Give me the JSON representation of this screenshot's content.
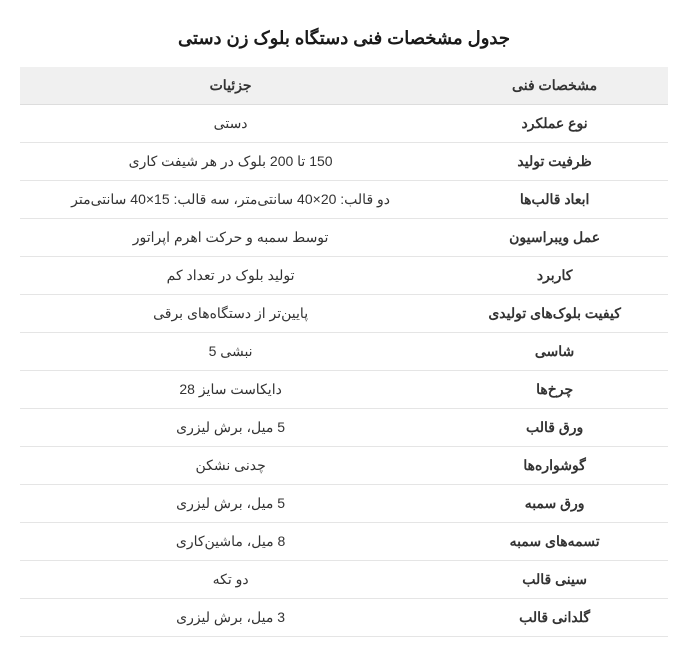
{
  "title": "جدول مشخصات فنی دستگاه بلوک زن دستی",
  "table": {
    "type": "table",
    "columns": [
      "مشخصات فنی",
      "جزئیات"
    ],
    "rows": [
      [
        "نوع عملکرد",
        "دستی"
      ],
      [
        "ظرفیت تولید",
        "150 تا 200 بلوک در هر شیفت کاری"
      ],
      [
        "ابعاد قالب‌ها",
        "دو قالب: 20×40 سانتی‌متر، سه قالب: 15×40 سانتی‌متر"
      ],
      [
        "عمل ویبراسیون",
        "توسط سمبه و حرکت اهرم اپراتور"
      ],
      [
        "کاربرد",
        "تولید بلوک در تعداد کم"
      ],
      [
        "کیفیت بلوک‌های تولیدی",
        "پایین‌تر از دستگاه‌های برقی"
      ],
      [
        "شاسی",
        "نبشی 5"
      ],
      [
        "چرخ‌ها",
        "دایکاست سایز 28"
      ],
      [
        "ورق قالب",
        "5 میل، برش لیزری"
      ],
      [
        "گوشواره‌ها",
        "چدنی نشکن"
      ],
      [
        "ورق سمبه",
        "5 میل، برش لیزری"
      ],
      [
        "تسمه‌های سمبه",
        "8 میل، ماشین‌کاری"
      ],
      [
        "سینی قالب",
        "دو تکه"
      ],
      [
        "گلدانی قالب",
        "3 میل، برش لیزری"
      ]
    ],
    "header_bg": "#f0f0f0",
    "border_color": "#e5e5e5",
    "text_color": "#333333",
    "font_size": 14,
    "title_fontsize": 18
  }
}
